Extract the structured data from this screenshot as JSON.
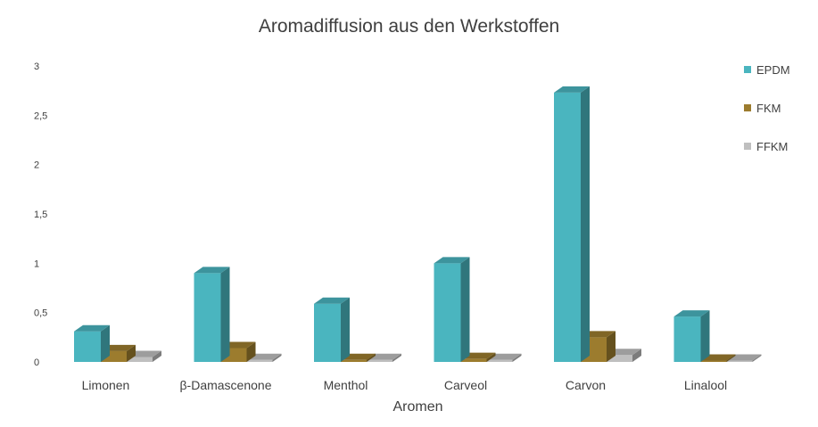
{
  "chart_data": {
    "type": "bar",
    "title": "Aromadiffusion aus den Werkstoffen",
    "xlabel": "Aromen",
    "ylabel": "",
    "categories": [
      "Limonen",
      "β-Damascenone",
      "Menthol",
      "Carveol",
      "Carvon",
      "Linalool"
    ],
    "series": [
      {
        "name": "EPDM",
        "values": [
          0.31,
          0.9,
          0.59,
          1.0,
          2.73,
          0.46
        ],
        "color": "#4ab5bf"
      },
      {
        "name": "FKM",
        "values": [
          0.11,
          0.14,
          0.02,
          0.03,
          0.25,
          0.01
        ],
        "color": "#9c7c2e"
      },
      {
        "name": "FFKM",
        "values": [
          0.05,
          0.02,
          0.02,
          0.02,
          0.07,
          0.01
        ],
        "color": "#bfbfbf"
      }
    ],
    "ylim": [
      0,
      3
    ],
    "yticks": [
      "0",
      "0,5",
      "1",
      "1,5",
      "2",
      "2,5",
      "3"
    ],
    "ytick_values": [
      0,
      0.5,
      1,
      1.5,
      2,
      2.5,
      3
    ],
    "grid": false,
    "legend_position": "right"
  }
}
